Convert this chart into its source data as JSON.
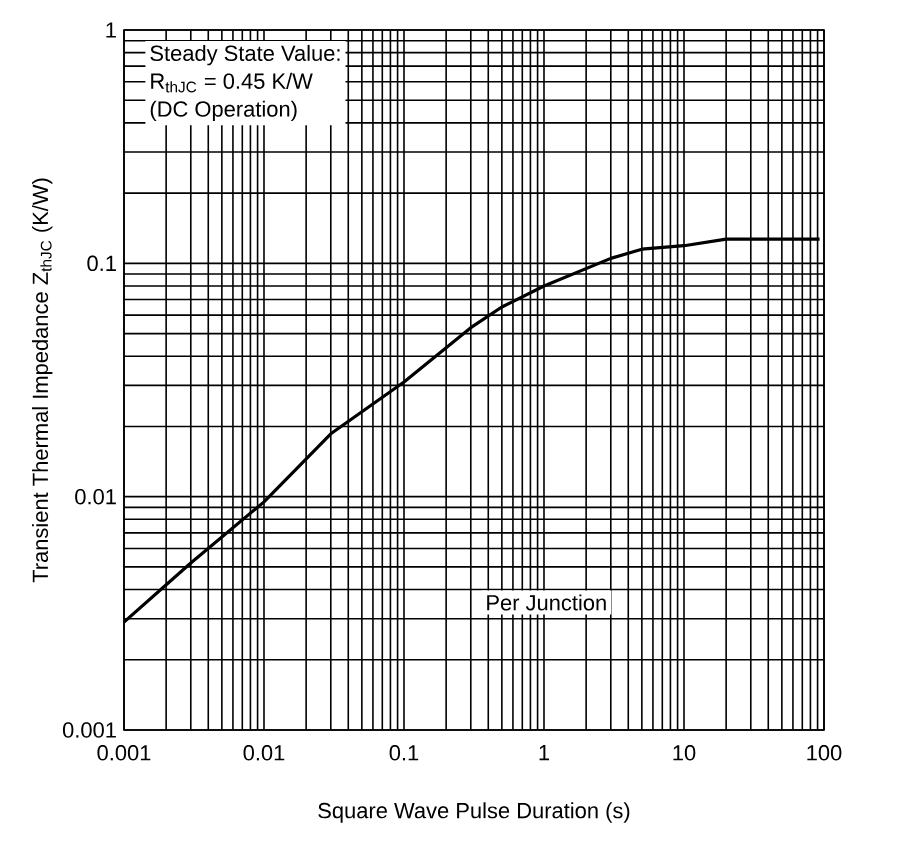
{
  "chart_data": {
    "type": "line",
    "xlabel": "Square Wave Pulse Duration (s)",
    "ylabel": "Transient Thermal Impedance Z$_{thJC}$ (K/W)",
    "log": "xy",
    "grid": true,
    "marker": "none",
    "line_style": "solid",
    "xlim": [
      0.001,
      100
    ],
    "ylim": [
      0.001,
      1
    ],
    "xticks": [
      0.001,
      0.01,
      0.1,
      1,
      10,
      100
    ],
    "yticks": [
      0.001,
      0.01,
      0.1,
      1
    ],
    "annotations": [
      "Steady State Value:",
      "R$_{thJC}$ = 0.45 K/W",
      "(DC Operation)",
      "Per Junction"
    ],
    "series": [
      {
        "color": "#000000",
        "x": [
          0.001,
          0.003,
          0.01,
          0.03,
          0.1,
          0.3,
          0.5,
          1,
          3,
          5,
          10,
          20,
          50,
          93
        ],
        "values": [
          0.0029,
          0.0052,
          0.0095,
          0.0186,
          0.031,
          0.053,
          0.065,
          0.08,
          0.105,
          0.115,
          0.119,
          0.127,
          0.127,
          0.127
        ]
      }
    ]
  }
}
